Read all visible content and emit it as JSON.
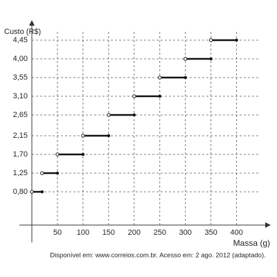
{
  "chart_data": {
    "type": "step",
    "y_label": "Custo (R$)",
    "x_label": "Massa (g)",
    "source": "Disponível em: www.correios.com.br. Acesso em: 2 ago. 2012 (adaptado).",
    "x_start": [
      0,
      20,
      50,
      100,
      150,
      200,
      250,
      300,
      350
    ],
    "x_end": [
      20,
      50,
      100,
      150,
      200,
      250,
      300,
      350,
      400
    ],
    "values": [
      0.8,
      1.25,
      1.7,
      2.15,
      2.65,
      3.1,
      3.55,
      4.0,
      4.45
    ],
    "color": "#111111",
    "xlim": [
      0,
      460
    ],
    "ylim": [
      0,
      4.8
    ],
    "xticks": [
      50,
      100,
      150,
      200,
      250,
      300,
      350,
      400
    ],
    "yticks": [
      {
        "value": 0.8,
        "label": "0,80"
      },
      {
        "value": 1.25,
        "label": "1,25"
      },
      {
        "value": 1.7,
        "label": "1,70"
      },
      {
        "value": 2.15,
        "label": "2,15"
      },
      {
        "value": 2.65,
        "label": "2,65"
      },
      {
        "value": 3.1,
        "label": "3,10"
      },
      {
        "value": 3.55,
        "label": "3,55"
      },
      {
        "value": 4.0,
        "label": "4,00"
      },
      {
        "value": 4.45,
        "label": "4,45"
      }
    ],
    "grid": true
  }
}
